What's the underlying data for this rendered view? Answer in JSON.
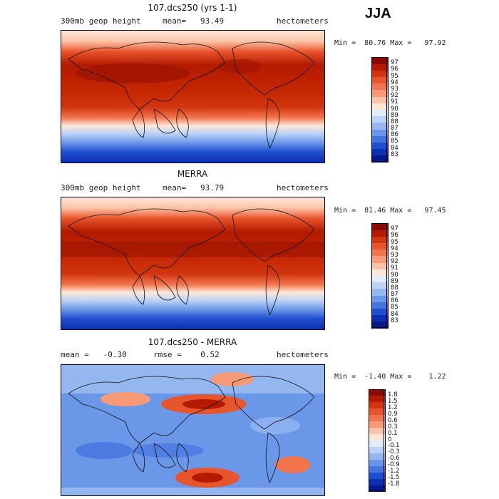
{
  "season": "JJA",
  "panels": [
    {
      "id": "model",
      "title": "107.dcs250 (yrs 1-1)",
      "left_label": "300mb geop height",
      "middle_label": "mean=   93.49",
      "right_label": "hectometers",
      "minmax": "Min =  80.76 Max =   97.92",
      "colorbar": {
        "labels": [
          "97",
          "96",
          "95",
          "94",
          "93",
          "92",
          "91",
          "90",
          "89",
          "88",
          "87",
          "86",
          "85",
          "84",
          "83"
        ],
        "colors": [
          "#8b0a00",
          "#b31a00",
          "#d13510",
          "#e8542b",
          "#f2764d",
          "#f89a78",
          "#fcc3a8",
          "#fde7d8",
          "#e1ecfb",
          "#bcd3f6",
          "#94b7f0",
          "#6b97e8",
          "#4474df",
          "#1f4fd0",
          "#0a2fb0",
          "#001a8a"
        ]
      }
    },
    {
      "id": "obs",
      "title": "MERRA",
      "left_label": "300mb geop height",
      "middle_label": "mean=   93.79",
      "right_label": "hectometers",
      "minmax": "Min =  81.46 Max =   97.45",
      "colorbar": {
        "labels": [
          "97",
          "96",
          "95",
          "94",
          "93",
          "92",
          "91",
          "90",
          "89",
          "88",
          "87",
          "86",
          "85",
          "84",
          "83"
        ],
        "colors": [
          "#8b0a00",
          "#b31a00",
          "#d13510",
          "#e8542b",
          "#f2764d",
          "#f89a78",
          "#fcc3a8",
          "#fde7d8",
          "#e1ecfb",
          "#bcd3f6",
          "#94b7f0",
          "#6b97e8",
          "#4474df",
          "#1f4fd0",
          "#0a2fb0",
          "#001a8a"
        ]
      }
    },
    {
      "id": "diff",
      "title": "107.dcs250 - MERRA",
      "left_label": "mean =   -0.30",
      "middle_label": "rmse =    0.52",
      "right_label": "hectometers",
      "minmax": "Min =  -1.40 Max =    1.22",
      "colorbar": {
        "labels": [
          "1.8",
          "1.5",
          "1.2",
          "0.9",
          "0.6",
          "0.3",
          "0.1",
          "0",
          "-0.1",
          "-0.3",
          "-0.6",
          "-0.9",
          "-1.2",
          "-1.5",
          "-1.8"
        ],
        "colors": [
          "#8b0a00",
          "#b31a00",
          "#d13510",
          "#e8542b",
          "#f2764d",
          "#f89a78",
          "#fcc3a8",
          "#fde7d8",
          "#e1ecfb",
          "#bcd3f6",
          "#94b7f0",
          "#6b97e8",
          "#4474df",
          "#1f4fd0",
          "#0a2fb0",
          "#001a8a"
        ]
      }
    }
  ]
}
